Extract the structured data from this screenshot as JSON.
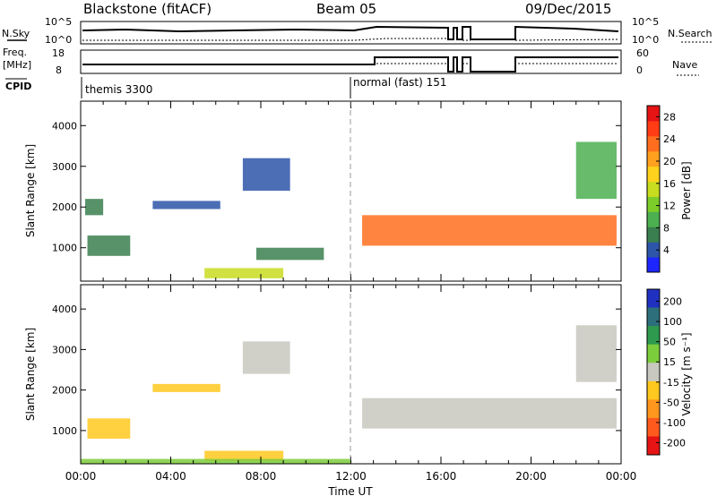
{
  "header": {
    "station": "Blackstone (fitACF)",
    "beam": "Beam 05",
    "date": "09/Dec/2015"
  },
  "top_panels": {
    "nsky_label": "N.Sky",
    "nsky_scale_left": [
      "10^5",
      "10^0"
    ],
    "nsky_scale_right": [
      "10^5",
      "10^0"
    ],
    "nsearch_label": "N.Search",
    "freq_label": "Freq.",
    "freq_unit": "[MHz]",
    "freq_ticks": [
      "18",
      "8"
    ],
    "nave_ticks": [
      "60",
      "0"
    ],
    "nave_label": "Nave",
    "cpid_label": "CPID",
    "cpid_segments": [
      {
        "name": "themis 3300",
        "start_h": 0
      },
      {
        "name": "normal (fast) 151",
        "start_h": 12
      }
    ]
  },
  "chart_data": [
    {
      "type": "heatmap",
      "name": "power",
      "xlabel": "",
      "ylabel": "Slant Range [km]",
      "xlim": [
        0,
        24
      ],
      "ylim": [
        180,
        4600
      ],
      "yticks": [
        "1000",
        "2000",
        "3000",
        "4000"
      ],
      "colorbar": {
        "label": "Power [dB]",
        "ticks": [
          "4",
          "8",
          "12",
          "16",
          "20",
          "24",
          "28"
        ],
        "colors": [
          "#1e26ff",
          "#2d55a8",
          "#3a7f4f",
          "#4caf50",
          "#7ccd2a",
          "#c8dc20",
          "#ffd21e",
          "#ffa01e",
          "#ff6e1e",
          "#ff3c14",
          "#e61414"
        ]
      },
      "bands": [
        {
          "h_start": 0.2,
          "h_end": 1.0,
          "range_low": 1800,
          "range_high": 2200,
          "power": 8
        },
        {
          "h_start": 0.3,
          "h_end": 2.2,
          "range_low": 800,
          "range_high": 1300,
          "power": 8
        },
        {
          "h_start": 3.2,
          "h_end": 6.2,
          "range_low": 1950,
          "range_high": 2150,
          "power": 6
        },
        {
          "h_start": 7.2,
          "h_end": 9.3,
          "range_low": 2400,
          "range_high": 3200,
          "power": 6
        },
        {
          "h_start": 7.8,
          "h_end": 10.8,
          "range_low": 700,
          "range_high": 1000,
          "power": 8
        },
        {
          "h_start": 5.5,
          "h_end": 9.0,
          "range_low": 250,
          "range_high": 500,
          "power": 16
        },
        {
          "h_start": 12.5,
          "h_end": 23.8,
          "range_low": 1050,
          "range_high": 1800,
          "power": 24
        },
        {
          "h_start": 22.0,
          "h_end": 23.8,
          "range_low": 2200,
          "range_high": 3600,
          "power": 10
        }
      ]
    },
    {
      "type": "heatmap",
      "name": "velocity",
      "xlabel": "Time UT",
      "ylabel": "Slant Range [km]",
      "xlim": [
        0,
        24
      ],
      "ylim": [
        180,
        4600
      ],
      "xticks": [
        "00:00",
        "04:00",
        "08:00",
        "12:00",
        "16:00",
        "20:00",
        "00:00"
      ],
      "yticks": [
        "1000",
        "2000",
        "3000",
        "4000"
      ],
      "colorbar": {
        "label": "Velocity [m s⁻¹]",
        "ticks": [
          "200",
          "100",
          "50",
          "15",
          "-15",
          "-50",
          "-100",
          "-200"
        ],
        "colors": [
          "#2030c0",
          "#2d6f7a",
          "#2d9a4e",
          "#7ccd3c",
          "#c8c8c0",
          "#ffc81e",
          "#ff961e",
          "#ff5a1e",
          "#e61414"
        ]
      },
      "bands": [
        {
          "h_start": 0.3,
          "h_end": 2.2,
          "range_low": 800,
          "range_high": 1300,
          "velocity": -40
        },
        {
          "h_start": 3.2,
          "h_end": 6.2,
          "range_low": 1950,
          "range_high": 2150,
          "velocity": -40
        },
        {
          "h_start": 7.2,
          "h_end": 9.3,
          "range_low": 2400,
          "range_high": 3200,
          "velocity": 0
        },
        {
          "h_start": 5.5,
          "h_end": 9.0,
          "range_low": 250,
          "range_high": 500,
          "velocity": -60
        },
        {
          "h_start": 0.0,
          "h_end": 12.0,
          "range_low": 180,
          "range_high": 300,
          "velocity": 40
        },
        {
          "h_start": 12.5,
          "h_end": 23.8,
          "range_low": 1050,
          "range_high": 1800,
          "velocity": 0
        },
        {
          "h_start": 22.0,
          "h_end": 23.8,
          "range_low": 2200,
          "range_high": 3600,
          "velocity": 0
        }
      ]
    }
  ]
}
